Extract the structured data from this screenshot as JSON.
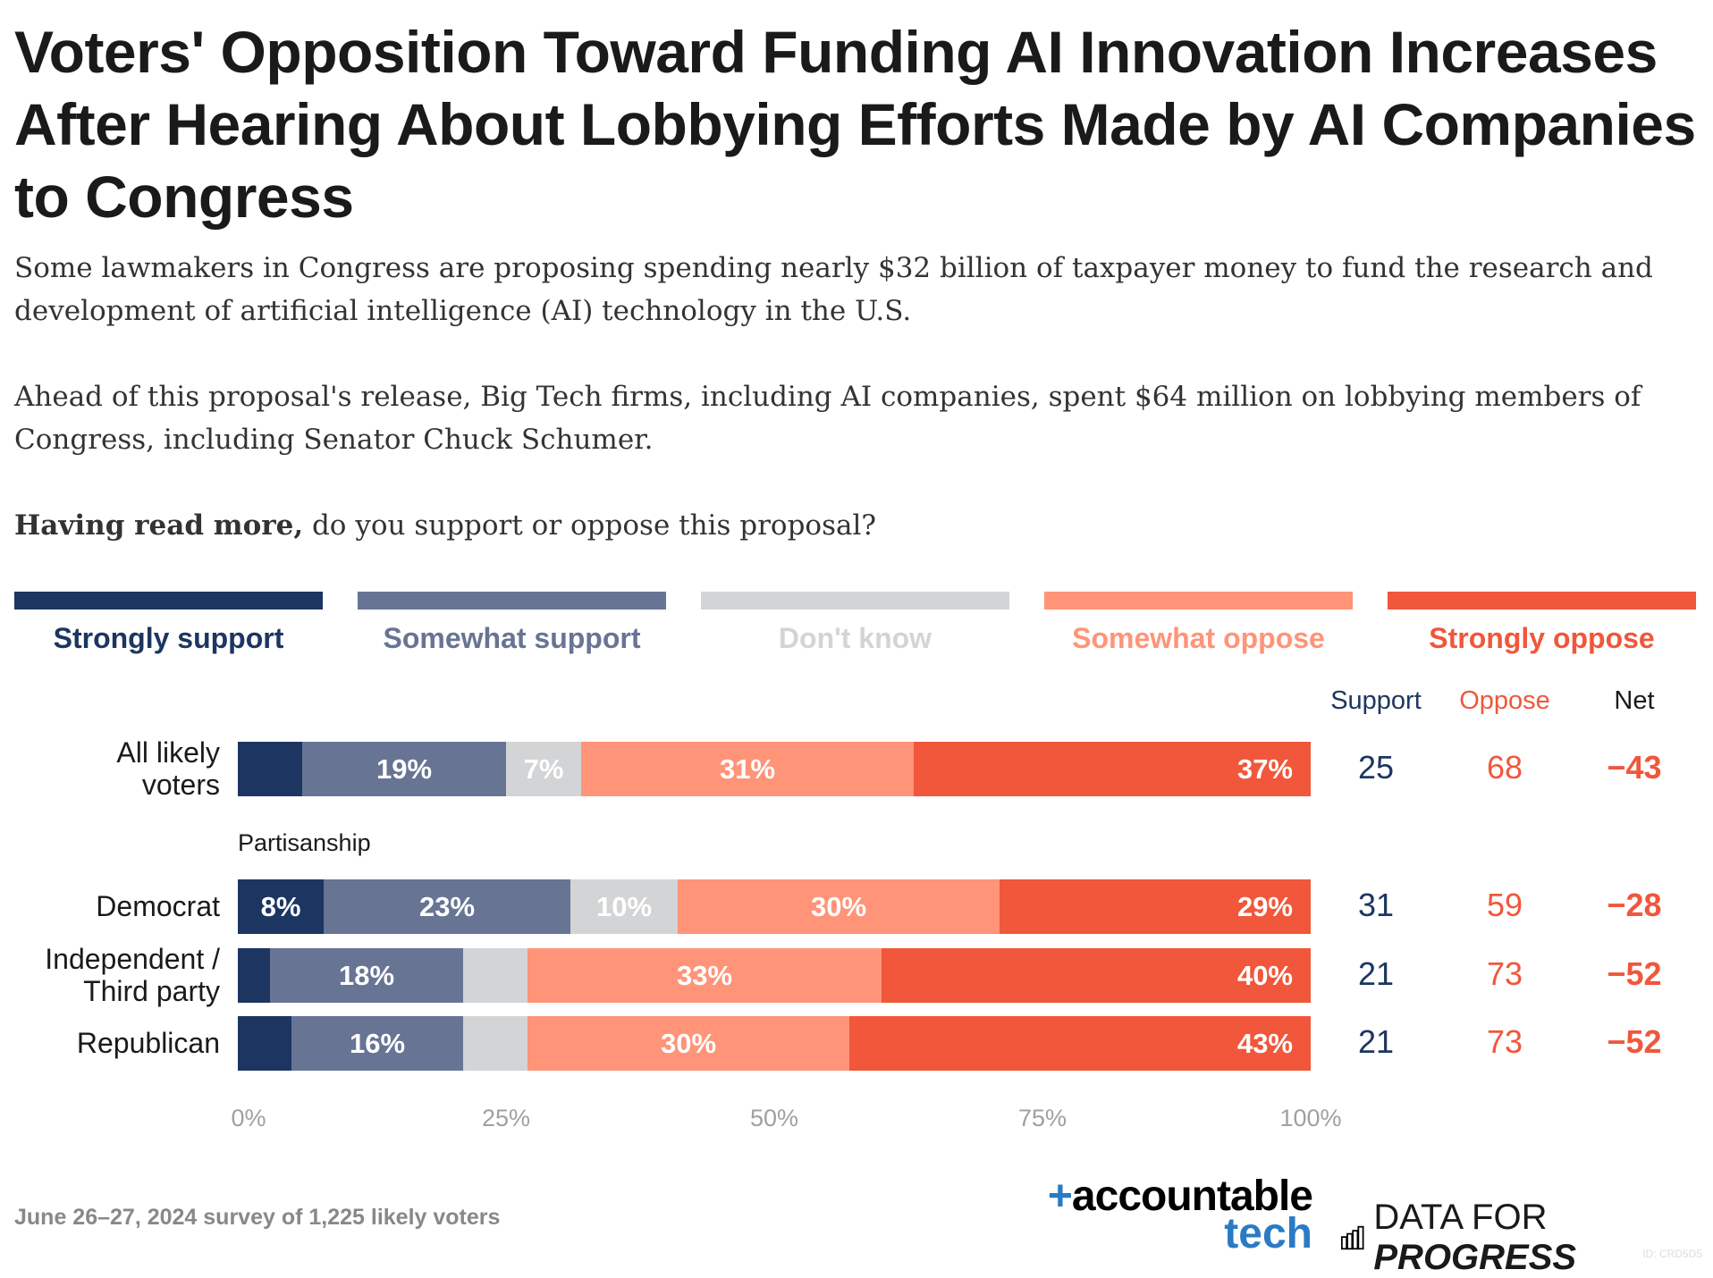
{
  "title": "Voters' Opposition Toward Funding AI Innovation Increases After Hearing About Lobbying Efforts Made by AI Companies to Congress",
  "subtitle_p1": "Some lawmakers in Congress are proposing spending nearly $32 billion of taxpayer money to fund the research and development of artificial intelligence (AI) technology in the U.S.",
  "subtitle_p2": "Ahead of this proposal's release, Big Tech firms, including AI companies, spent $64 million on lobbying members of Congress, including Senator Chuck Schumer.",
  "question_bold": "Having read more,",
  "question_rest": " do you support or oppose this proposal?",
  "columns": {
    "support": "Support",
    "oppose": "Oppose",
    "net": "Net"
  },
  "group_label": "Partisanship",
  "footer": "June 26–27, 2024 survey of 1,225 likely voters",
  "logos": {
    "accountable": "+accountable",
    "tech": "tech",
    "dfp_plain": "DATA FOR ",
    "dfp_italic": "PROGRESS",
    "id": "ID: CRD5D5"
  },
  "chart_data": {
    "type": "bar",
    "orientation": "horizontal-stacked-100",
    "categories": [
      "All likely voters",
      "Democrat",
      "Independent / Third party",
      "Republican"
    ],
    "series": [
      {
        "name": "Strongly support",
        "color": "#1c3661",
        "values": [
          6,
          8,
          3,
          5
        ],
        "labels": [
          "",
          "8%",
          "",
          ""
        ]
      },
      {
        "name": "Somewhat support",
        "color": "#687494",
        "values": [
          19,
          23,
          18,
          16
        ],
        "labels": [
          "19%",
          "23%",
          "18%",
          "16%"
        ]
      },
      {
        "name": "Don't know",
        "color": "#d3d4d6",
        "values": [
          7,
          10,
          6,
          6
        ],
        "labels": [
          "7%",
          "10%",
          "",
          ""
        ]
      },
      {
        "name": "Somewhat oppose",
        "color": "#ff9478",
        "values": [
          31,
          30,
          33,
          30
        ],
        "labels": [
          "31%",
          "30%",
          "33%",
          "30%"
        ]
      },
      {
        "name": "Strongly oppose",
        "color": "#f0573b",
        "values": [
          37,
          29,
          40,
          43
        ],
        "labels": [
          "37%",
          "29%",
          "40%",
          "43%"
        ]
      }
    ],
    "support": [
      "25",
      "31",
      "21",
      "21"
    ],
    "oppose": [
      "68",
      "59",
      "73",
      "73"
    ],
    "net": [
      "−43",
      "−28",
      "−52",
      "−52"
    ],
    "xticks": [
      "0%",
      "25%",
      "50%",
      "75%",
      "100%"
    ],
    "xlim": [
      0,
      100
    ],
    "legend": "top",
    "grid": false
  }
}
